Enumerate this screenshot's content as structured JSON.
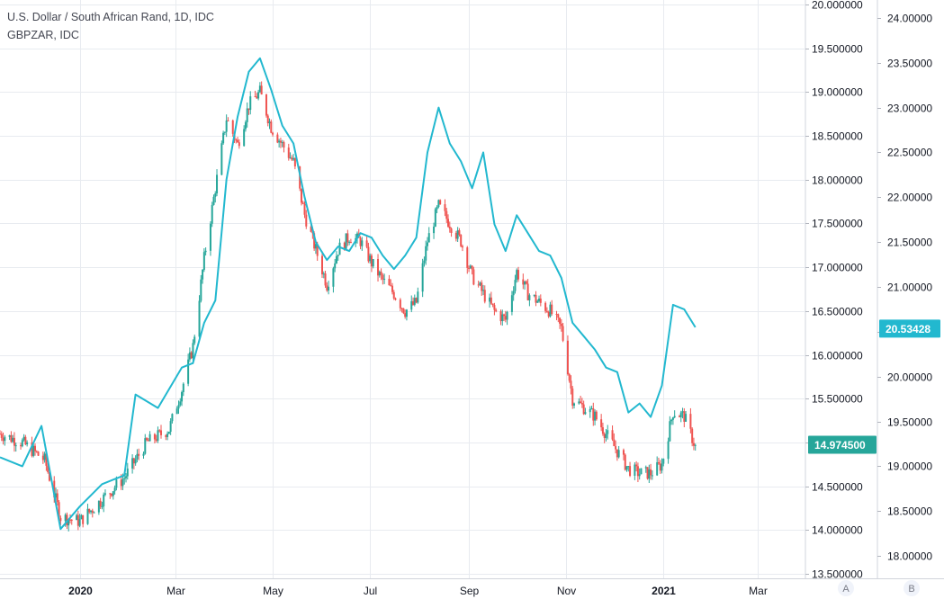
{
  "chart_data": {
    "type": "line",
    "title": "U.S. Dollar / South African Rand, 1D, IDC",
    "subtitle": "GBPZAR, IDC",
    "x_axis": {
      "tick_labels": [
        "2020",
        "Mar",
        "May",
        "Jul",
        "Sep",
        "Nov",
        "2021",
        "Mar"
      ],
      "range": [
        "2019-11-12",
        "2021-03-31"
      ]
    },
    "y_axis_inner": {
      "ylim": [
        13.45,
        20.05
      ],
      "ticks": [
        "13.500000",
        "14.000000",
        "14.500000",
        "15.000000",
        "15.500000",
        "16.000000",
        "16.500000",
        "17.000000",
        "17.500000",
        "18.000000",
        "18.500000",
        "19.000000",
        "19.500000",
        "20.000000"
      ]
    },
    "y_axis_outer": {
      "ylim": [
        17.75,
        24.2
      ],
      "ticks": [
        "18.00000",
        "18.50000",
        "19.00000",
        "19.50000",
        "20.00000",
        "20.50000",
        "21.00000",
        "21.50000",
        "22.00000",
        "22.50000",
        "23.00000",
        "23.50000",
        "24.00000"
      ]
    },
    "series": [
      {
        "name": "U.S. Dollar / South African Rand",
        "style": "candlestick",
        "axis": "inner",
        "up_color": "#26a69a",
        "down_color": "#ef5350",
        "last_value": "14.974500",
        "x": [
          "2019-11-12",
          "2019-11-26",
          "2019-12-10",
          "2019-12-20",
          "2020-01-01",
          "2020-01-15",
          "2020-01-29",
          "2020-02-12",
          "2020-02-26",
          "2020-03-05",
          "2020-03-12",
          "2020-03-19",
          "2020-03-26",
          "2020-04-02",
          "2020-04-09",
          "2020-04-16",
          "2020-04-23",
          "2020-04-30",
          "2020-05-07",
          "2020-05-14",
          "2020-05-21",
          "2020-05-28",
          "2020-06-04",
          "2020-06-11",
          "2020-06-18",
          "2020-06-25",
          "2020-07-02",
          "2020-07-09",
          "2020-07-16",
          "2020-07-23",
          "2020-07-30",
          "2020-08-06",
          "2020-08-13",
          "2020-08-20",
          "2020-08-27",
          "2020-09-03",
          "2020-09-10",
          "2020-09-17",
          "2020-09-24",
          "2020-10-01",
          "2020-10-08",
          "2020-10-15",
          "2020-10-22",
          "2020-10-29",
          "2020-11-05",
          "2020-11-12",
          "2020-11-19",
          "2020-11-26",
          "2020-12-03",
          "2020-12-10",
          "2020-12-17",
          "2020-12-24",
          "2020-12-31",
          "2021-01-07",
          "2021-01-14",
          "2021-01-21"
        ],
        "y": [
          15.1,
          15.0,
          14.8,
          14.15,
          14.1,
          14.35,
          14.6,
          15.0,
          15.15,
          15.6,
          16.1,
          17.1,
          17.9,
          18.7,
          18.4,
          18.85,
          19.0,
          18.6,
          18.4,
          18.2,
          17.6,
          17.2,
          16.8,
          17.2,
          17.35,
          17.3,
          17.05,
          16.85,
          16.7,
          16.5,
          16.6,
          17.3,
          17.7,
          17.5,
          17.3,
          16.9,
          16.7,
          16.5,
          16.4,
          16.95,
          16.7,
          16.6,
          16.5,
          16.3,
          15.5,
          15.4,
          15.3,
          15.1,
          14.9,
          14.7,
          14.65,
          14.65,
          14.75,
          15.35,
          15.3,
          14.95
        ]
      },
      {
        "name": "GBPZAR",
        "style": "line",
        "axis": "outer",
        "color": "#22b8cf",
        "last_value": "20.53428",
        "x": [
          "2019-11-12",
          "2019-11-26",
          "2019-12-08",
          "2019-12-20",
          "2020-01-01",
          "2020-01-15",
          "2020-01-29",
          "2020-02-05",
          "2020-02-19",
          "2020-03-05",
          "2020-03-12",
          "2020-03-19",
          "2020-03-26",
          "2020-04-02",
          "2020-04-09",
          "2020-04-16",
          "2020-04-23",
          "2020-04-30",
          "2020-05-07",
          "2020-05-14",
          "2020-05-21",
          "2020-05-28",
          "2020-06-04",
          "2020-06-11",
          "2020-06-18",
          "2020-06-25",
          "2020-07-02",
          "2020-07-09",
          "2020-07-16",
          "2020-07-23",
          "2020-07-30",
          "2020-08-06",
          "2020-08-13",
          "2020-08-20",
          "2020-08-27",
          "2020-09-03",
          "2020-09-10",
          "2020-09-17",
          "2020-09-24",
          "2020-10-01",
          "2020-10-08",
          "2020-10-15",
          "2020-10-22",
          "2020-10-29",
          "2020-11-05",
          "2020-11-12",
          "2020-11-19",
          "2020-11-26",
          "2020-12-03",
          "2020-12-10",
          "2020-12-17",
          "2020-12-24",
          "2020-12-31",
          "2021-01-07",
          "2021-01-14",
          "2021-01-21"
        ],
        "y": [
          19.1,
          19.0,
          19.45,
          18.3,
          18.55,
          18.8,
          18.9,
          19.8,
          19.65,
          20.1,
          20.15,
          20.6,
          20.85,
          22.2,
          22.9,
          23.4,
          23.55,
          23.2,
          22.8,
          22.6,
          22.0,
          21.5,
          21.3,
          21.45,
          21.4,
          21.6,
          21.55,
          21.35,
          21.2,
          21.35,
          21.55,
          22.5,
          23.0,
          22.6,
          22.4,
          22.1,
          22.5,
          21.7,
          21.4,
          21.8,
          21.6,
          21.4,
          21.35,
          21.1,
          20.6,
          20.45,
          20.3,
          20.1,
          20.05,
          19.6,
          19.7,
          19.55,
          19.9,
          20.8,
          20.75,
          20.55
        ]
      }
    ],
    "grid": true
  },
  "bottom_right_buttons": [
    "A",
    "B"
  ],
  "colors": {
    "up": "#26a69a",
    "down": "#ef5350",
    "gbpzar": "#22b8cf",
    "grid": "#e8ebf0",
    "axis_text": "#131722"
  }
}
